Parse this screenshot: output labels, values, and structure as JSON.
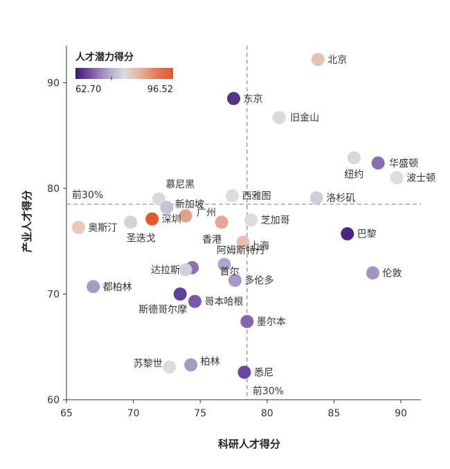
{
  "chart_data": {
    "type": "scatter",
    "xlabel": "科研人才得分",
    "ylabel": "产业人才得分",
    "xlim": [
      65,
      91.5
    ],
    "ylim": [
      60,
      93.5
    ],
    "x_ticks": [
      65,
      70,
      75,
      80,
      85,
      90
    ],
    "y_ticks": [
      60,
      70,
      80,
      90
    ],
    "grid": false,
    "color_scale": {
      "title": "人才潜力得分",
      "min": 62.7,
      "max": 96.52,
      "min_label": "62.70",
      "max_label": "96.52",
      "colors": [
        "#3b1a78",
        "#7d5aa6",
        "#b2a5ca",
        "#dcdcdc",
        "#e5b19c",
        "#e8765a",
        "#e05a2b"
      ],
      "placement": "top-left"
    },
    "reference_lines": {
      "x": 78.5,
      "y": 78.5,
      "x_label": "前30%",
      "y_label": "前30%"
    },
    "points": [
      {
        "name": "北京",
        "x": 83.8,
        "y": 92.2,
        "color": "#e4c3b5"
      },
      {
        "name": "东京",
        "x": 77.5,
        "y": 88.5,
        "color": "#56348e"
      },
      {
        "name": "旧金山",
        "x": 80.9,
        "y": 86.7,
        "color": "#dadadb"
      },
      {
        "name": "纽约",
        "x": 86.5,
        "y": 82.9,
        "color": "#d8d8db"
      },
      {
        "name": "华盛顿",
        "x": 88.3,
        "y": 82.4,
        "color": "#8a70b2"
      },
      {
        "name": "波士顿",
        "x": 89.7,
        "y": 81.0,
        "color": "#dcdcdc"
      },
      {
        "name": "慕尼黑",
        "x": 71.9,
        "y": 79.0,
        "color": "#dadadc"
      },
      {
        "name": "新加坡",
        "x": 72.5,
        "y": 78.2,
        "color": "#c6c1d6"
      },
      {
        "name": "西雅图",
        "x": 77.4,
        "y": 79.3,
        "color": "#dcdcdc"
      },
      {
        "name": "洛杉矶",
        "x": 83.7,
        "y": 79.1,
        "color": "#d0cddd"
      },
      {
        "name": "奥斯汀",
        "x": 65.9,
        "y": 76.3,
        "color": "#e6c9bb"
      },
      {
        "name": "圣迭戈",
        "x": 69.8,
        "y": 76.8,
        "color": "#d3d1de"
      },
      {
        "name": "深圳",
        "x": 71.4,
        "y": 77.1,
        "color": "#e05a2b"
      },
      {
        "name": "广州",
        "x": 73.9,
        "y": 77.4,
        "color": "#e3a287"
      },
      {
        "name": "香港",
        "x": 76.6,
        "y": 76.8,
        "color": "#e5a78f"
      },
      {
        "name": "芝加哥",
        "x": 78.8,
        "y": 77.0,
        "color": "#dcdcdc"
      },
      {
        "name": "巴黎",
        "x": 86.0,
        "y": 75.7,
        "color": "#4b2586"
      },
      {
        "name": "上海",
        "x": 78.2,
        "y": 74.9,
        "color": "#e4c0b0"
      },
      {
        "name": "阿姆斯特丹",
        "x": 76.8,
        "y": 72.8,
        "color": "#b0a4ca"
      },
      {
        "name": "首尔",
        "x": 74.4,
        "y": 72.5,
        "color": "#8d73b3"
      },
      {
        "name": "达拉斯",
        "x": 73.9,
        "y": 72.3,
        "color": "#d2d0dd"
      },
      {
        "name": "伦敦",
        "x": 87.9,
        "y": 72.0,
        "color": "#a494c4"
      },
      {
        "name": "多伦多",
        "x": 77.6,
        "y": 71.3,
        "color": "#a898c6"
      },
      {
        "name": "都柏林",
        "x": 67.0,
        "y": 70.7,
        "color": "#a898c6"
      },
      {
        "name": "斯德哥尔摩",
        "x": 73.5,
        "y": 70.0,
        "color": "#61409a"
      },
      {
        "name": "哥本哈根",
        "x": 74.6,
        "y": 69.3,
        "color": "#7b5ba9"
      },
      {
        "name": "墨尔本",
        "x": 78.5,
        "y": 67.4,
        "color": "#8466ae"
      },
      {
        "name": "苏黎世",
        "x": 72.7,
        "y": 63.1,
        "color": "#dcdcdc"
      },
      {
        "name": "柏林",
        "x": 74.3,
        "y": 63.3,
        "color": "#a898c6"
      },
      {
        "name": "悉尼",
        "x": 78.3,
        "y": 62.6,
        "color": "#6a489f"
      }
    ]
  }
}
